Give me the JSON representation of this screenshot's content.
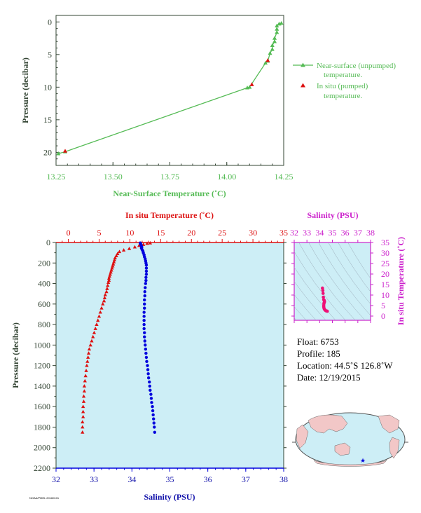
{
  "colors": {
    "axis_dark": "#334433",
    "green": "#55bb55",
    "red": "#dd1111",
    "blue": "#0000dd",
    "magenta": "#cc22cc",
    "panel_bg": "#cdeef6",
    "salinity_label": "#1111aa",
    "ts_points": "#ee1177"
  },
  "chart_data": [
    {
      "id": "near_surface",
      "type": "line",
      "xlabel": "Near-Surface Temperature (˚C)",
      "ylabel": "Pressure (decibar)",
      "xlim": [
        13.25,
        14.25
      ],
      "ylim": [
        22,
        -1
      ],
      "x_ticks": [
        "13.25",
        "13.50",
        "13.75",
        "14.00",
        "14.25"
      ],
      "y_ticks": [
        "0",
        "5",
        "10",
        "15",
        "20"
      ],
      "series": [
        {
          "name": "Near-surface (unpumped) temperature.",
          "marker": "triangle",
          "color": "green",
          "points": [
            [
              13.26,
              20.2
            ],
            [
              13.29,
              19.9
            ],
            [
              14.09,
              10.1
            ],
            [
              14.1,
              10.0
            ],
            [
              14.17,
              6.3
            ],
            [
              14.18,
              6.0
            ],
            [
              14.19,
              4.8
            ],
            [
              14.2,
              4.2
            ],
            [
              14.2,
              3.6
            ],
            [
              14.21,
              3.0
            ],
            [
              14.21,
              2.5
            ],
            [
              14.22,
              1.6
            ],
            [
              14.22,
              1.1
            ],
            [
              14.22,
              0.6
            ],
            [
              14.23,
              0.3
            ],
            [
              14.24,
              0.2
            ]
          ]
        },
        {
          "name": "In situ (pumped) temperature.",
          "marker": "triangle",
          "color": "red",
          "points": [
            [
              13.29,
              19.8
            ],
            [
              14.11,
              9.6
            ],
            [
              14.18,
              5.9
            ]
          ]
        }
      ]
    },
    {
      "id": "profile",
      "type": "scatter",
      "xlabel": "Salinity (PSU)",
      "ylabel": "Pressure (decibar)",
      "top_label": "In situ Temperature (˚C)",
      "xlim": [
        32,
        38
      ],
      "top_lim": [
        -2,
        35
      ],
      "ylim": [
        2200,
        0
      ],
      "x_ticks": [
        "32",
        "33",
        "34",
        "35",
        "36",
        "37",
        "38"
      ],
      "top_ticks": [
        "0",
        "5",
        "10",
        "15",
        "20",
        "25",
        "30",
        "35"
      ],
      "y_ticks": [
        "0",
        "200",
        "400",
        "600",
        "800",
        "1000",
        "1200",
        "1400",
        "1600",
        "1800",
        "2000",
        "2200"
      ],
      "series": [
        {
          "name": "In situ Temperature",
          "marker": "triangle",
          "color": "red",
          "points": [
            [
              13.3,
              5
            ],
            [
              12.8,
              10
            ],
            [
              12.2,
              20
            ],
            [
              11.5,
              30
            ],
            [
              10.8,
              45
            ],
            [
              9.9,
              60
            ],
            [
              9.0,
              75
            ],
            [
              8.3,
              90
            ],
            [
              8.0,
              110
            ],
            [
              7.8,
              130
            ],
            [
              7.6,
              150
            ],
            [
              7.5,
              170
            ],
            [
              7.4,
              190
            ],
            [
              7.3,
              210
            ],
            [
              7.2,
              230
            ],
            [
              7.1,
              250
            ],
            [
              7.0,
              270
            ],
            [
              6.9,
              290
            ],
            [
              6.8,
              310
            ],
            [
              6.7,
              330
            ],
            [
              6.6,
              350
            ],
            [
              6.6,
              370
            ],
            [
              6.5,
              390
            ],
            [
              6.4,
              420
            ],
            [
              6.3,
              450
            ],
            [
              6.2,
              480
            ],
            [
              6.0,
              510
            ],
            [
              5.9,
              540
            ],
            [
              5.8,
              570
            ],
            [
              5.6,
              600
            ],
            [
              5.4,
              640
            ],
            [
              5.2,
              680
            ],
            [
              5.0,
              720
            ],
            [
              4.8,
              760
            ],
            [
              4.6,
              800
            ],
            [
              4.4,
              840
            ],
            [
              4.2,
              880
            ],
            [
              4.0,
              920
            ],
            [
              3.8,
              960
            ],
            [
              3.6,
              1000
            ],
            [
              3.4,
              1040
            ],
            [
              3.3,
              1080
            ],
            [
              3.2,
              1120
            ],
            [
              3.1,
              1160
            ],
            [
              3.0,
              1200
            ],
            [
              2.9,
              1250
            ],
            [
              2.8,
              1300
            ],
            [
              2.7,
              1350
            ],
            [
              2.6,
              1400
            ],
            [
              2.6,
              1450
            ],
            [
              2.5,
              1500
            ],
            [
              2.5,
              1550
            ],
            [
              2.4,
              1600
            ],
            [
              2.4,
              1650
            ],
            [
              2.4,
              1700
            ],
            [
              2.3,
              1750
            ],
            [
              2.3,
              1800
            ],
            [
              2.3,
              1850
            ]
          ]
        },
        {
          "name": "Salinity",
          "marker": "circle",
          "color": "blue",
          "points": [
            [
              34.22,
              5
            ],
            [
              34.23,
              15
            ],
            [
              34.24,
              25
            ],
            [
              34.25,
              35
            ],
            [
              34.26,
              45
            ],
            [
              34.25,
              55
            ],
            [
              34.27,
              70
            ],
            [
              34.29,
              85
            ],
            [
              34.3,
              100
            ],
            [
              34.32,
              120
            ],
            [
              34.33,
              140
            ],
            [
              34.35,
              160
            ],
            [
              34.36,
              180
            ],
            [
              34.37,
              200
            ],
            [
              34.38,
              220
            ],
            [
              34.38,
              250
            ],
            [
              34.38,
              280
            ],
            [
              34.38,
              310
            ],
            [
              34.37,
              340
            ],
            [
              34.37,
              370
            ],
            [
              34.36,
              400
            ],
            [
              34.35,
              440
            ],
            [
              34.34,
              480
            ],
            [
              34.34,
              520
            ],
            [
              34.33,
              560
            ],
            [
              34.33,
              600
            ],
            [
              34.33,
              640
            ],
            [
              34.32,
              680
            ],
            [
              34.32,
              720
            ],
            [
              34.32,
              760
            ],
            [
              34.32,
              800
            ],
            [
              34.32,
              840
            ],
            [
              34.33,
              880
            ],
            [
              34.33,
              920
            ],
            [
              34.34,
              960
            ],
            [
              34.35,
              1000
            ],
            [
              34.36,
              1040
            ],
            [
              34.37,
              1080
            ],
            [
              34.38,
              1120
            ],
            [
              34.39,
              1160
            ],
            [
              34.41,
              1200
            ],
            [
              34.42,
              1240
            ],
            [
              34.43,
              1280
            ],
            [
              34.44,
              1320
            ],
            [
              34.46,
              1360
            ],
            [
              34.47,
              1400
            ],
            [
              34.48,
              1440
            ],
            [
              34.5,
              1480
            ],
            [
              34.51,
              1520
            ],
            [
              34.52,
              1560
            ],
            [
              34.54,
              1600
            ],
            [
              34.55,
              1640
            ],
            [
              34.56,
              1680
            ],
            [
              34.57,
              1720
            ],
            [
              34.58,
              1760
            ],
            [
              34.59,
              1800
            ],
            [
              34.6,
              1850
            ]
          ]
        }
      ]
    },
    {
      "id": "ts_diagram",
      "type": "scatter",
      "xlabel": "Salinity (PSU)",
      "ylabel": "In situ Temperature (˚C)",
      "xlim": [
        32,
        38
      ],
      "ylim": [
        -2,
        35
      ],
      "x_ticks": [
        "32",
        "33",
        "34",
        "35",
        "36",
        "37",
        "38"
      ],
      "y_ticks": [
        "0",
        "5",
        "10",
        "15",
        "20",
        "25",
        "30",
        "35"
      ],
      "series": [
        {
          "name": "T-S",
          "marker": "circle",
          "color": "ts_points",
          "points": [
            [
              34.22,
              13.3
            ],
            [
              34.25,
              12.2
            ],
            [
              34.27,
              10.8
            ],
            [
              34.29,
              9.0
            ],
            [
              34.32,
              7.8
            ],
            [
              34.36,
              7.4
            ],
            [
              34.38,
              7.0
            ],
            [
              34.37,
              6.6
            ],
            [
              34.35,
              6.3
            ],
            [
              34.33,
              5.8
            ],
            [
              34.32,
              5.0
            ],
            [
              34.32,
              4.4
            ],
            [
              34.34,
              3.8
            ],
            [
              34.37,
              3.3
            ],
            [
              34.41,
              3.0
            ],
            [
              34.45,
              2.7
            ],
            [
              34.5,
              2.5
            ],
            [
              34.55,
              2.4
            ],
            [
              34.6,
              2.3
            ]
          ]
        }
      ]
    }
  ],
  "float_info": {
    "float": "Float:  6753",
    "profile": "Profile:  185",
    "location": "Location:  44.5˚S  126.8˚W",
    "date": "Date:  12/19/2015"
  },
  "stamp": "NOAA/PMEL  20160101",
  "map": {
    "projection": "world map, Pacific-centred",
    "float_marker": "star",
    "float_lon_deg": -126.8,
    "float_lat_deg": -44.5
  }
}
